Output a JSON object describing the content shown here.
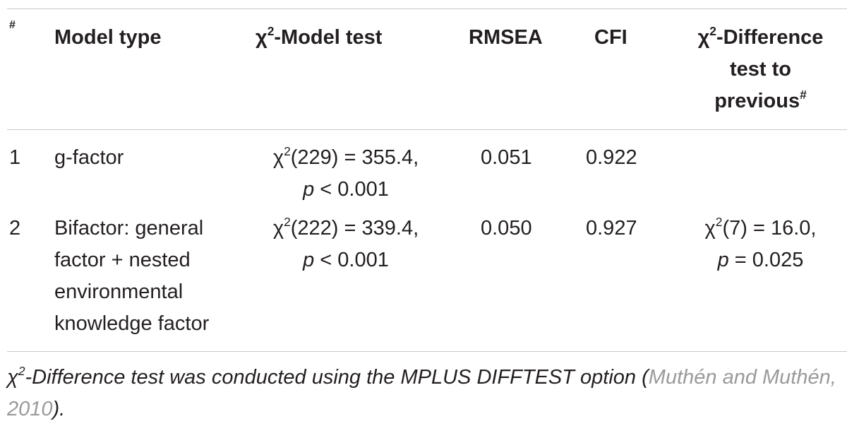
{
  "header": {
    "num": "#",
    "model_type": "Model type",
    "chi_model_prefix": "χ",
    "chi_model_sup": "2",
    "chi_model_suffix": "-Model test",
    "rmsea": "RMSEA",
    "cfi": "CFI",
    "diff_prefix": "χ",
    "diff_sup": "2",
    "diff_line1_suffix": "-Difference",
    "diff_line2": "test to",
    "diff_line3": "previous",
    "diff_line3_sup": "#"
  },
  "rows": [
    {
      "num": "1",
      "model_lines": [
        "g-factor"
      ],
      "chi_prefix": "χ",
      "chi_sup": "2",
      "chi_line1": "(229) = 355.4,",
      "chi_p": "p",
      "chi_line2": " < 0.001",
      "rmsea": "0.051",
      "cfi": "0.922"
    },
    {
      "num": "2",
      "model_lines": [
        "Bifactor: general",
        "factor + nested",
        "environmental",
        "knowledge factor"
      ],
      "chi_prefix": "χ",
      "chi_sup": "2",
      "chi_line1": "(222) = 339.4,",
      "chi_p": "p",
      "chi_line2": " < 0.001",
      "rmsea": "0.050",
      "cfi": "0.927",
      "diff_prefix": "χ",
      "diff_sup": "2",
      "diff_line1": "(7) = 16.0,",
      "diff_p": "p",
      "diff_line2": " = 0.025"
    }
  ],
  "footnote": {
    "prefix": "χ",
    "sup": "2",
    "text": "-Difference test was conducted using the MPLUS DIFFTEST option (",
    "citation": "Muthén and Muthén, 2010",
    "suffix": ")."
  }
}
